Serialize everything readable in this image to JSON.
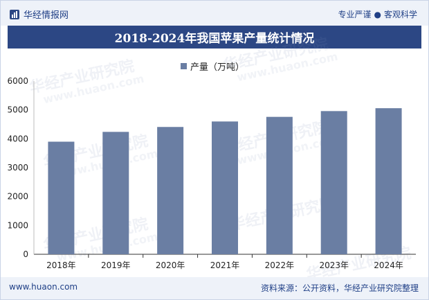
{
  "header": {
    "brand_name": "华经情报网",
    "slogan_left": "专业严谨",
    "slogan_dot": "●",
    "slogan_right": "客观科学"
  },
  "watermark": {
    "text": "华经产业研究院",
    "url": "www.huaon.com"
  },
  "chart_data": {
    "type": "bar",
    "title": "2018-2024年我国苹果产量统计情况",
    "categories": [
      "2018年",
      "2019年",
      "2020年",
      "2021年",
      "2022年",
      "2023年",
      "2024年"
    ],
    "series": [
      {
        "name": "产量（万吨）",
        "values": [
          3900,
          4240,
          4410,
          4600,
          4760,
          4960,
          5060
        ],
        "color": "#6a7ea3"
      }
    ],
    "ylim": [
      0,
      6000
    ],
    "yticks": [
      0,
      1000,
      2000,
      3000,
      4000,
      5000,
      6000
    ],
    "legend_position": "top-center",
    "grid": false
  },
  "footer": {
    "url": "www.huaon.com",
    "source": "资料来源：公开资料，华经产业研究院整理"
  }
}
